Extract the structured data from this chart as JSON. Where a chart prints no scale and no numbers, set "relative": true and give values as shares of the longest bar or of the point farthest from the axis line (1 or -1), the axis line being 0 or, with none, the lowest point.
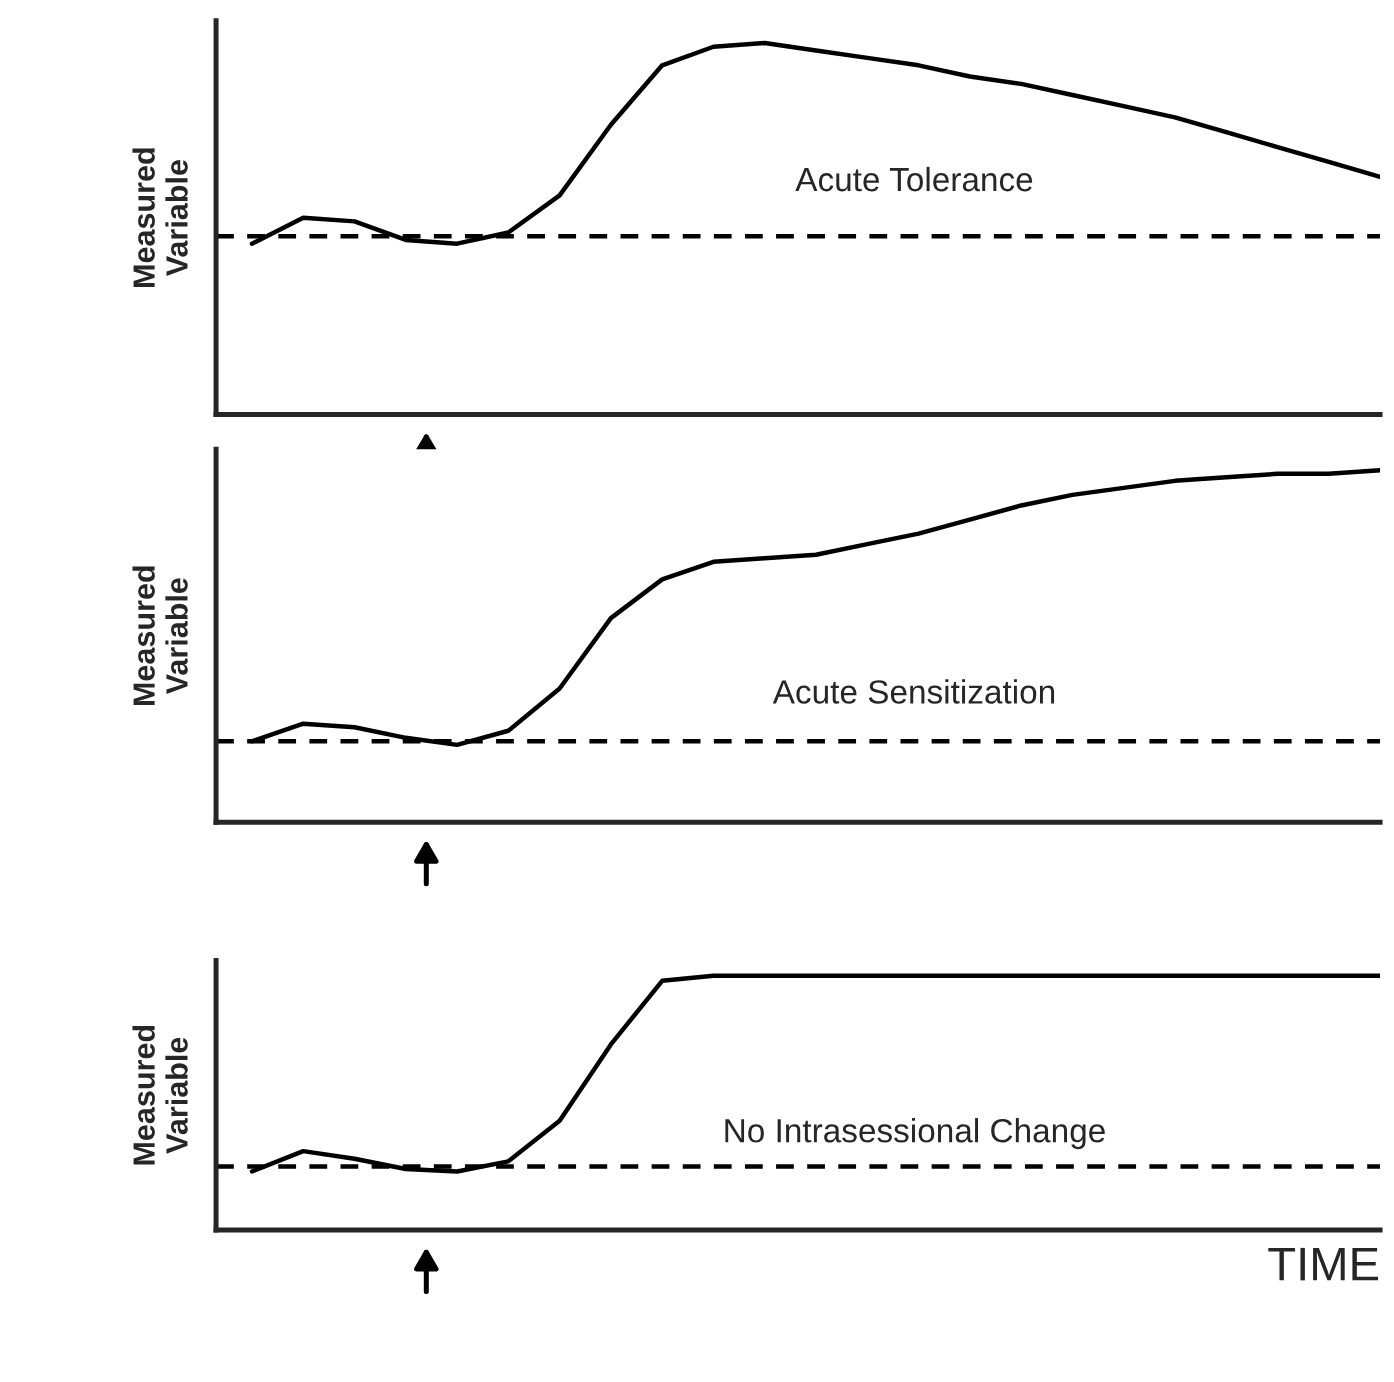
{
  "chart_data": [
    {
      "type": "line",
      "relative": true,
      "ylabel": "Measured Variable",
      "annotations": [
        "Acute Tolerance"
      ],
      "categories": [
        null,
        null,
        null,
        null,
        null,
        null,
        null,
        null,
        null,
        null,
        null,
        null,
        null,
        null,
        null,
        null,
        null,
        null,
        null,
        null,
        null,
        null,
        null
      ],
      "series": [
        {
          "color": "#000000",
          "values": [
            0.46,
            0.53,
            0.52,
            0.47,
            0.46,
            0.49,
            0.59,
            0.78,
            0.94,
            0.99,
            1.0,
            0.98,
            0.96,
            0.94,
            0.91,
            0.89,
            0.86,
            0.83,
            0.8,
            0.76,
            0.72,
            0.68,
            0.64
          ]
        }
      ],
      "ref_lines": [
        {
          "axis": "y",
          "value": 0.48,
          "color": "#000000",
          "line_style": "dashed"
        }
      ],
      "tick_labels": false,
      "legend": false
    },
    {
      "type": "line",
      "relative": true,
      "ylabel": "Measured Variable",
      "annotations": [
        "Acute Sensitization"
      ],
      "categories": [
        null,
        null,
        null,
        null,
        null,
        null,
        null,
        null,
        null,
        null,
        null,
        null,
        null,
        null,
        null,
        null,
        null,
        null,
        null,
        null,
        null,
        null,
        null
      ],
      "series": [
        {
          "color": "#000000",
          "values": [
            0.23,
            0.28,
            0.27,
            0.24,
            0.22,
            0.26,
            0.38,
            0.58,
            0.69,
            0.74,
            0.75,
            0.76,
            0.79,
            0.82,
            0.86,
            0.9,
            0.93,
            0.95,
            0.97,
            0.98,
            0.99,
            0.99,
            1.0
          ]
        }
      ],
      "ref_lines": [
        {
          "axis": "y",
          "value": 0.23,
          "color": "#000000",
          "line_style": "dashed"
        }
      ],
      "tick_labels": false,
      "legend": false
    },
    {
      "type": "line",
      "relative": true,
      "ylabel": "Measured Variable",
      "xlabel": "TIME",
      "annotations": [
        "No Intrasessional Change"
      ],
      "categories": [
        null,
        null,
        null,
        null,
        null,
        null,
        null,
        null,
        null,
        null,
        null,
        null,
        null,
        null,
        null,
        null,
        null,
        null,
        null,
        null,
        null,
        null,
        null
      ],
      "series": [
        {
          "color": "#000000",
          "values": [
            0.23,
            0.31,
            0.28,
            0.24,
            0.23,
            0.27,
            0.43,
            0.73,
            0.98,
            1.0,
            1.0,
            1.0,
            1.0,
            1.0,
            1.0,
            1.0,
            1.0,
            1.0,
            1.0,
            1.0,
            1.0,
            1.0,
            1.0
          ]
        }
      ],
      "ref_lines": [
        {
          "axis": "y",
          "value": 0.25,
          "color": "#000000",
          "line_style": "dashed"
        }
      ],
      "tick_labels": false,
      "legend": false
    }
  ]
}
